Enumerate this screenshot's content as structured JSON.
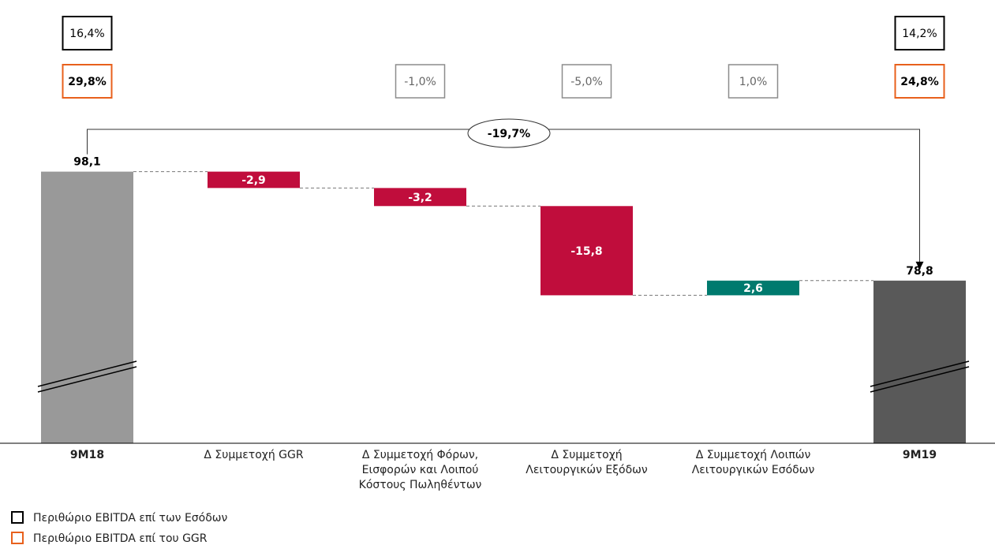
{
  "chart_data": {
    "type": "waterfall",
    "categories": [
      "9M18",
      "Δ Συμμετοχή GGR",
      "Δ Συμμετοχή Φόρων,\nΕισφορών και Λοιπού\nΚόστους Πωληθέντων",
      "Δ Συμμετοχή\nΛειτουργικών Εξόδων",
      "Δ Συμμετοχή Λοιπών\nΛειτουργικών Εσόδων",
      "9M19"
    ],
    "measures": [
      "absolute",
      "relative",
      "relative",
      "relative",
      "relative",
      "absolute"
    ],
    "values": [
      98.1,
      -2.9,
      -3.2,
      -15.8,
      2.6,
      78.8
    ],
    "value_labels": [
      "98,1",
      "-2,9",
      "-3,2",
      "-15,8",
      "2,6",
      "78,8"
    ],
    "colors": [
      "#999999",
      "#c00d3c",
      "#c00d3c",
      "#c00d3c",
      "#007a6e",
      "#595959"
    ],
    "ylim": [
      50,
      100
    ],
    "broken_axis": true,
    "change_label": "-19,7%",
    "margins": [
      {
        "name": "Περιθώριο EBITDA επί των Εσόδων",
        "color": "#000000",
        "labels": [
          "16,4%",
          null,
          null,
          null,
          null,
          "14,2%"
        ]
      },
      {
        "name": "Περιθώριο EBITDA επί του GGR",
        "color": "#e8601c",
        "labels": [
          "29,8%",
          null,
          "-1,0%",
          "-5,0%",
          "1,0%",
          "24,8%"
        ]
      }
    ],
    "delta_color": "#8c8c8c"
  }
}
